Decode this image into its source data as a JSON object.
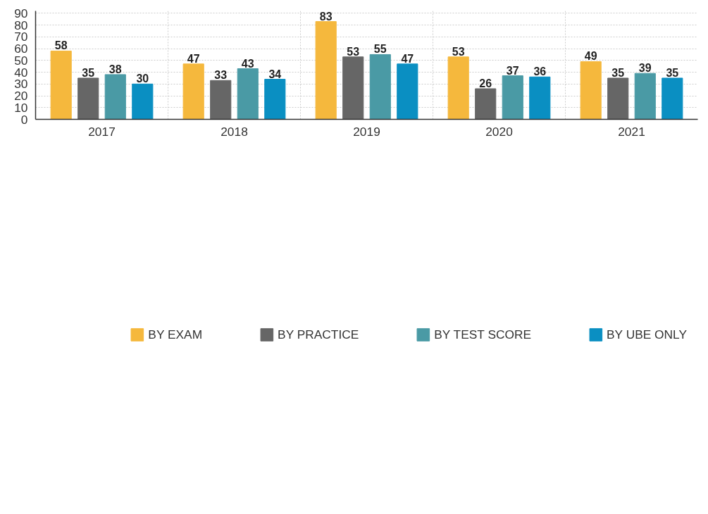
{
  "chart_data": {
    "type": "bar",
    "categories": [
      "2017",
      "2018",
      "2019",
      "2020",
      "2021"
    ],
    "series": [
      {
        "name": "BY EXAM",
        "color": "#f5b83d",
        "values": [
          58,
          47,
          83,
          53,
          49
        ]
      },
      {
        "name": "BY PRACTICE",
        "color": "#666666",
        "values": [
          35,
          33,
          53,
          26,
          35
        ]
      },
      {
        "name": "BY TEST SCORE",
        "color": "#4a9aa5",
        "values": [
          38,
          43,
          55,
          37,
          39
        ]
      },
      {
        "name": "BY UBE ONLY",
        "color": "#0a8fc2",
        "values": [
          30,
          34,
          47,
          36,
          35
        ]
      }
    ],
    "ylim": [
      0,
      92
    ],
    "yticks": [
      0,
      10,
      20,
      30,
      40,
      50,
      60,
      70,
      80,
      90
    ],
    "grid": true,
    "legend": "bottom",
    "data_labels": true
  }
}
